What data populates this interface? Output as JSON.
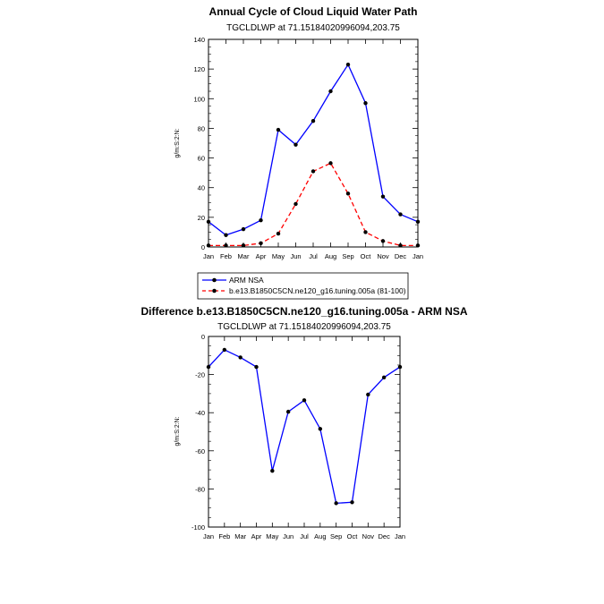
{
  "colors": {
    "series1": "#0000ff",
    "series2": "#ff0000",
    "diff": "#0000ff",
    "marker": "#000000"
  },
  "legend": {
    "entries": [
      "ARM NSA",
      "b.e13.B1850C5CN.ne120_g16.tuning.005a (81-100)"
    ]
  },
  "chart_data": [
    {
      "type": "line",
      "title": "Annual Cycle of Cloud Liquid Water Path",
      "subtitle": "TGCLDLWP at 71.15184020996094,203.75",
      "xlabel": "",
      "ylabel": "g/m:S:2:N:",
      "categories": [
        "Jan",
        "Feb",
        "Mar",
        "Apr",
        "May",
        "Jun",
        "Jul",
        "Aug",
        "Sep",
        "Oct",
        "Nov",
        "Dec",
        "Jan"
      ],
      "ylim": [
        0,
        140
      ],
      "yticks": [
        "0",
        "20",
        "40",
        "60",
        "80",
        "100",
        "120",
        "140"
      ],
      "series": [
        {
          "name": "ARM NSA",
          "style": "solid",
          "values": [
            17,
            8,
            12,
            18,
            79,
            69,
            85,
            105,
            123,
            97,
            34,
            22,
            17
          ]
        },
        {
          "name": "b.e13.B1850C5CN.ne120_g16.tuning.005a (81-100)",
          "style": "dashed",
          "values": [
            1,
            1,
            1,
            2.5,
            9,
            29,
            51,
            56.5,
            36,
            10,
            4,
            1,
            1
          ]
        }
      ]
    },
    {
      "type": "line",
      "title": "Difference b.e13.B1850C5CN.ne120_g16.tuning.005a - ARM NSA",
      "subtitle": "TGCLDLWP at 71.15184020996094,203.75",
      "xlabel": "",
      "ylabel": "g/m:S:2:N:",
      "categories": [
        "Jan",
        "Feb",
        "Mar",
        "Apr",
        "May",
        "Jun",
        "Jul",
        "Aug",
        "Sep",
        "Oct",
        "Nov",
        "Dec",
        "Jan"
      ],
      "ylim": [
        -100,
        0
      ],
      "yticks": [
        "-100",
        "-80",
        "-60",
        "-40",
        "-20",
        "0"
      ],
      "series": [
        {
          "name": "Difference",
          "style": "solid",
          "values": [
            -16,
            -7,
            -11,
            -16,
            -70.5,
            -39.5,
            -33.5,
            -48.5,
            -87.5,
            -87,
            -30.5,
            -21.5,
            -16
          ]
        }
      ]
    }
  ]
}
